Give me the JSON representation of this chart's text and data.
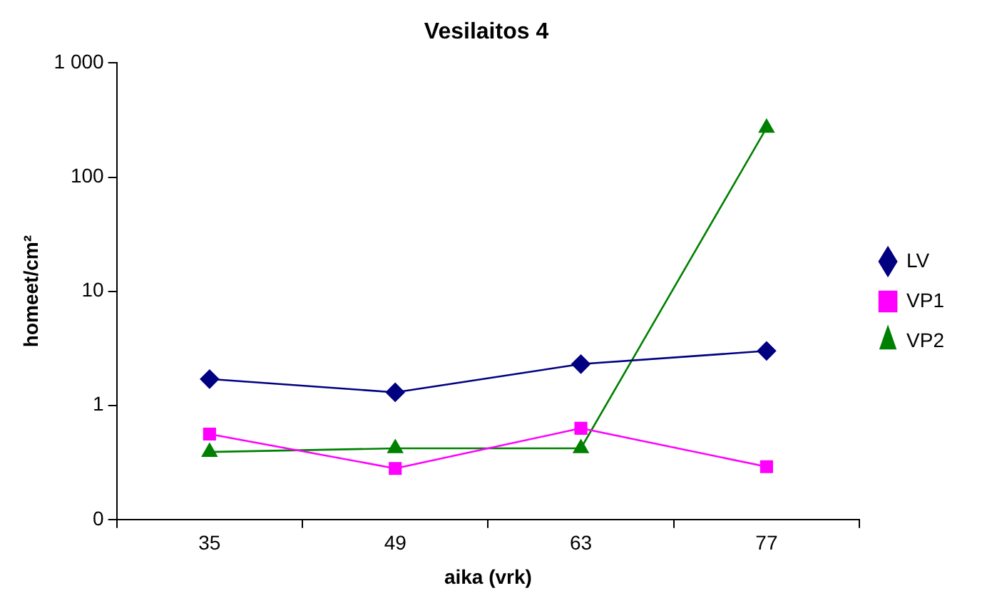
{
  "chart_data": {
    "type": "line",
    "title": "Vesilaitos 4",
    "xlabel": "aika (vrk)",
    "ylabel": "homeet/cm²",
    "categories": [
      "35",
      "49",
      "63",
      "77"
    ],
    "series": [
      {
        "name": "LV",
        "color": "#000080",
        "marker": "diamond",
        "values": [
          1.7,
          1.3,
          2.3,
          3.0
        ]
      },
      {
        "name": "VP1",
        "color": "#ff00ff",
        "marker": "square",
        "values": [
          0.56,
          0.28,
          0.63,
          0.29
        ]
      },
      {
        "name": "VP2",
        "color": "#008000",
        "marker": "triangle",
        "values": [
          0.39,
          0.42,
          0.42,
          270
        ]
      }
    ],
    "log": "y",
    "ylim": [
      0.1,
      1000
    ],
    "yticks": [
      {
        "value": 0.1,
        "label": "0"
      },
      1,
      10,
      100,
      {
        "value": 1000,
        "label": "1 000"
      }
    ],
    "grid": false,
    "legend": "right"
  }
}
